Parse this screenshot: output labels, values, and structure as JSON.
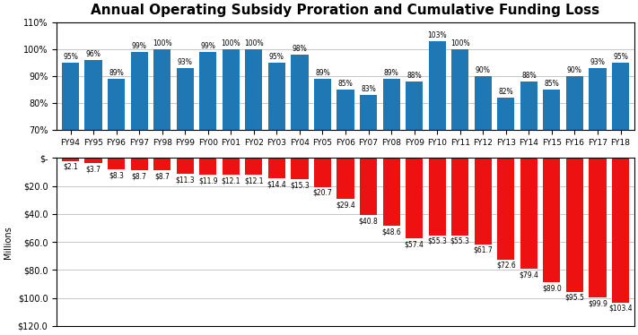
{
  "chart_data": [
    {
      "type": "bar",
      "title": "Annual Operating Subsidy Proration and Cumulative Funding Loss",
      "categories": [
        "FY94",
        "FY95",
        "FY96",
        "FY97",
        "FY98",
        "FY99",
        "FY00",
        "FY01",
        "FY02",
        "FY03",
        "FY04",
        "FY05",
        "FY06",
        "FY07",
        "FY08",
        "FY09",
        "FY10",
        "FY11",
        "FY12",
        "FY13",
        "FY14",
        "FY15",
        "FY16",
        "FY17",
        "FY18"
      ],
      "values": [
        95,
        96,
        89,
        99,
        100,
        93,
        99,
        100,
        100,
        95,
        98,
        89,
        85,
        83,
        89,
        88,
        103,
        100,
        90,
        82,
        88,
        85,
        90,
        93,
        95
      ],
      "value_labels": [
        "95%",
        "96%",
        "89%",
        "99%",
        "100%",
        "93%",
        "99%",
        "100%",
        "100%",
        "95%",
        "98%",
        "89%",
        "85%",
        "83%",
        "89%",
        "88%",
        "103%",
        "100%",
        "90%",
        "82%",
        "88%",
        "85%",
        "90%",
        "93%",
        "95%"
      ],
      "data_labels": true,
      "ylim": [
        70,
        110
      ],
      "yticks": [
        {
          "value": 70,
          "label": "70%"
        },
        {
          "value": 80,
          "label": "80%"
        },
        {
          "value": 90,
          "label": "90%"
        },
        {
          "value": 100,
          "label": "100%"
        },
        {
          "value": 110,
          "label": "110%"
        }
      ],
      "grid": true
    },
    {
      "type": "bar",
      "ylabel": "Millions",
      "categories": [
        "FY94",
        "FY95",
        "FY96",
        "FY97",
        "FY98",
        "FY99",
        "FY00",
        "FY01",
        "FY02",
        "FY03",
        "FY04",
        "FY05",
        "FY06",
        "FY07",
        "FY08",
        "FY09",
        "FY10",
        "FY11",
        "FY12",
        "FY13",
        "FY14",
        "FY15",
        "FY16",
        "FY17",
        "FY18"
      ],
      "values": [
        2.1,
        3.7,
        8.3,
        8.7,
        8.7,
        11.3,
        11.9,
        12.1,
        12.1,
        14.4,
        15.3,
        20.7,
        29.4,
        40.8,
        48.6,
        57.4,
        55.3,
        55.3,
        61.7,
        72.6,
        79.4,
        89.0,
        95.5,
        99.9,
        103.4
      ],
      "value_labels": [
        "$2.1",
        "$3.7",
        "$8.3",
        "$8.7",
        "$8.7",
        "$11.3",
        "$11.9",
        "$12.1",
        "$12.1",
        "$14.4",
        "$15.3",
        "$20.7",
        "$29.4",
        "$40.8",
        "$48.6",
        "$57.4",
        "$55.3",
        "$55.3",
        "$61.7",
        "$72.6",
        "$79.4",
        "$89.0",
        "$95.5",
        "$99.9",
        "$103.4"
      ],
      "data_labels": true,
      "color": "#ee1111",
      "ylim": [
        120,
        0
      ],
      "yticks": [
        {
          "value": 0,
          "label": "$-"
        },
        {
          "value": 20,
          "label": "$20.0"
        },
        {
          "value": 40,
          "label": "$40.0"
        },
        {
          "value": 60,
          "label": "$60.0"
        },
        {
          "value": 80,
          "label": "$80.0"
        },
        {
          "value": 100,
          "label": "$100.0"
        },
        {
          "value": 120,
          "label": "$120.0"
        }
      ],
      "grid": true,
      "tick_labels": "y"
    }
  ]
}
